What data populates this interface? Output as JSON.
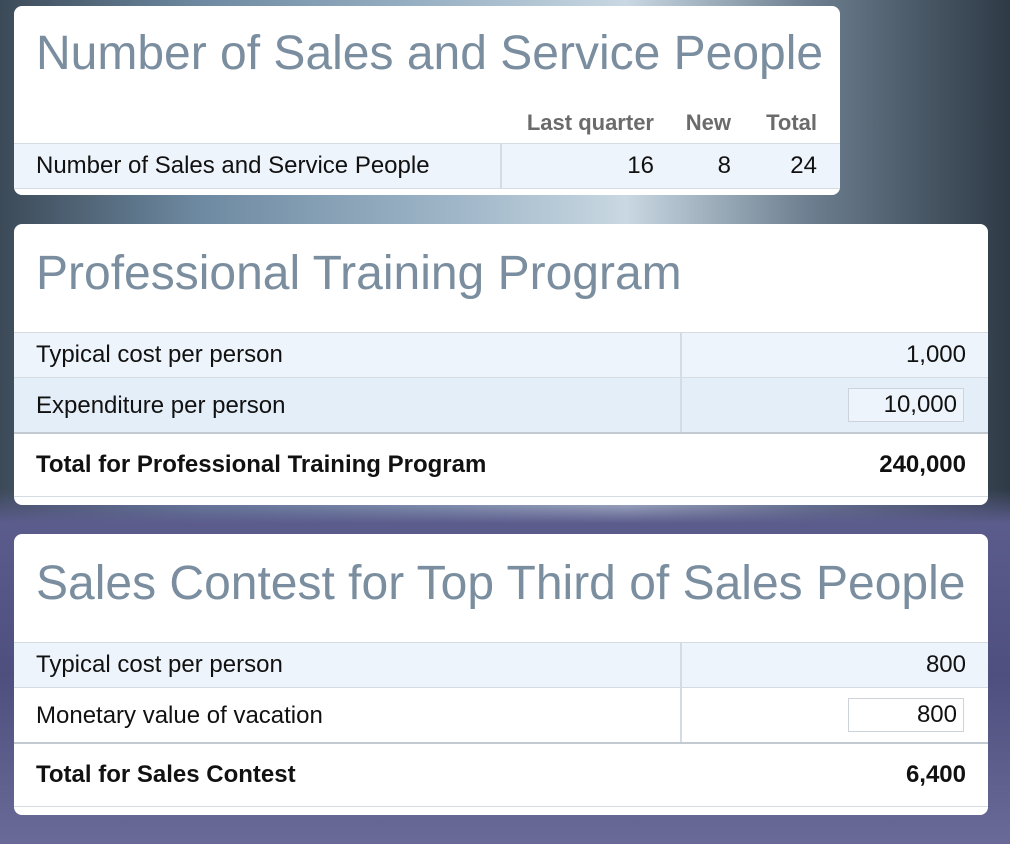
{
  "panels": [
    {
      "title": "Number of Sales and Service People",
      "columns": [
        "Last quarter",
        "New",
        "Total"
      ],
      "rows": [
        {
          "label": "Number of Sales and Service People",
          "values": [
            "16",
            "8",
            "24"
          ]
        }
      ]
    },
    {
      "title": "Professional Training Program",
      "rows": [
        {
          "label": "Typical cost per person",
          "value": "1,000"
        },
        {
          "label": "Expenditure per person",
          "value": "10,000"
        }
      ],
      "total": {
        "label": "Total for Professional Training Program",
        "value": "240,000"
      }
    },
    {
      "title": "Sales Contest for Top Third of Sales People",
      "rows": [
        {
          "label": "Typical cost per person",
          "value": "800"
        },
        {
          "label": "Monetary value of vacation",
          "value": "800"
        }
      ],
      "total": {
        "label": "Total for Sales Contest",
        "value": "6,400"
      }
    }
  ]
}
